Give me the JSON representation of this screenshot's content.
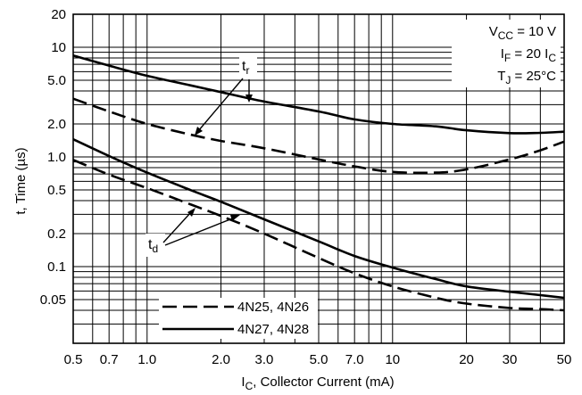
{
  "chart_data": {
    "type": "line",
    "x_scale": "log",
    "y_scale": "log",
    "xlim": [
      0.5,
      50
    ],
    "ylim": [
      0.02,
      20
    ],
    "grid": true,
    "x_ticks": [
      {
        "value": 0.5,
        "label": "0.5"
      },
      {
        "value": 0.7,
        "label": "0.7"
      },
      {
        "value": 1.0,
        "label": "1.0"
      },
      {
        "value": 2.0,
        "label": "2.0"
      },
      {
        "value": 3.0,
        "label": "3.0"
      },
      {
        "value": 5.0,
        "label": "5.0"
      },
      {
        "value": 7.0,
        "label": "7.0"
      },
      {
        "value": 10,
        "label": "10"
      },
      {
        "value": 20,
        "label": "20"
      },
      {
        "value": 30,
        "label": "30"
      },
      {
        "value": 50,
        "label": "50"
      }
    ],
    "y_ticks": [
      {
        "value": 20,
        "label": "20"
      },
      {
        "value": 10,
        "label": "10"
      },
      {
        "value": 5.0,
        "label": "5.0"
      },
      {
        "value": 2.0,
        "label": "2.0"
      },
      {
        "value": 1.0,
        "label": "1.0"
      },
      {
        "value": 0.5,
        "label": "0.5"
      },
      {
        "value": 0.2,
        "label": "0.2"
      },
      {
        "value": 0.1,
        "label": "0.1"
      },
      {
        "value": 0.05,
        "label": "0.05"
      }
    ],
    "xlabel": {
      "main": "I",
      "sub": "C",
      "rest": ", Collector Current (mA)"
    },
    "ylabel": "t, Time (µs)",
    "conditions": [
      {
        "main": "V",
        "sub": "CC",
        "rest": " = 10 V"
      },
      {
        "main": "I",
        "sub": "F",
        "rest": " = 20 I",
        "sub2": "C"
      },
      {
        "main": "T",
        "sub": "J",
        "rest": " = 25°C"
      }
    ],
    "legend": {
      "placement": "bottom-left",
      "entries": [
        {
          "label": "4N25, 4N26",
          "style": "dashed"
        },
        {
          "label": "4N27, 4N28",
          "style": "solid"
        }
      ]
    },
    "annotations": [
      {
        "main": "t",
        "sub": "r"
      },
      {
        "main": "t",
        "sub": "d"
      }
    ],
    "series": [
      {
        "group": "tr",
        "style": "solid",
        "x": [
          0.5,
          0.7,
          1.0,
          1.5,
          2.0,
          3.0,
          5.0,
          7.0,
          10,
          15,
          20,
          30,
          40,
          50
        ],
        "y": [
          8.4,
          6.8,
          5.5,
          4.5,
          3.9,
          3.2,
          2.6,
          2.2,
          2.0,
          1.9,
          1.75,
          1.65,
          1.66,
          1.7
        ]
      },
      {
        "group": "tr",
        "style": "dashed",
        "x": [
          0.5,
          0.7,
          1.0,
          1.5,
          2.0,
          3.0,
          5.0,
          7.0,
          10,
          15,
          20,
          30,
          40,
          50
        ],
        "y": [
          3.4,
          2.6,
          2.0,
          1.6,
          1.4,
          1.2,
          0.95,
          0.82,
          0.73,
          0.72,
          0.77,
          0.95,
          1.15,
          1.38
        ]
      },
      {
        "group": "td",
        "style": "solid",
        "x": [
          0.5,
          0.7,
          1.0,
          1.5,
          2.0,
          3.0,
          5.0,
          7.0,
          10,
          15,
          20,
          30,
          40,
          50
        ],
        "y": [
          1.45,
          1.02,
          0.72,
          0.5,
          0.39,
          0.27,
          0.17,
          0.125,
          0.098,
          0.077,
          0.066,
          0.059,
          0.055,
          0.052
        ]
      },
      {
        "group": "td",
        "style": "dashed",
        "x": [
          0.5,
          0.7,
          1.0,
          1.5,
          2.0,
          3.0,
          5.0,
          7.0,
          10,
          15,
          20,
          30,
          40,
          50
        ],
        "y": [
          0.94,
          0.69,
          0.52,
          0.37,
          0.29,
          0.2,
          0.12,
          0.087,
          0.066,
          0.052,
          0.046,
          0.042,
          0.041,
          0.04
        ]
      }
    ]
  }
}
